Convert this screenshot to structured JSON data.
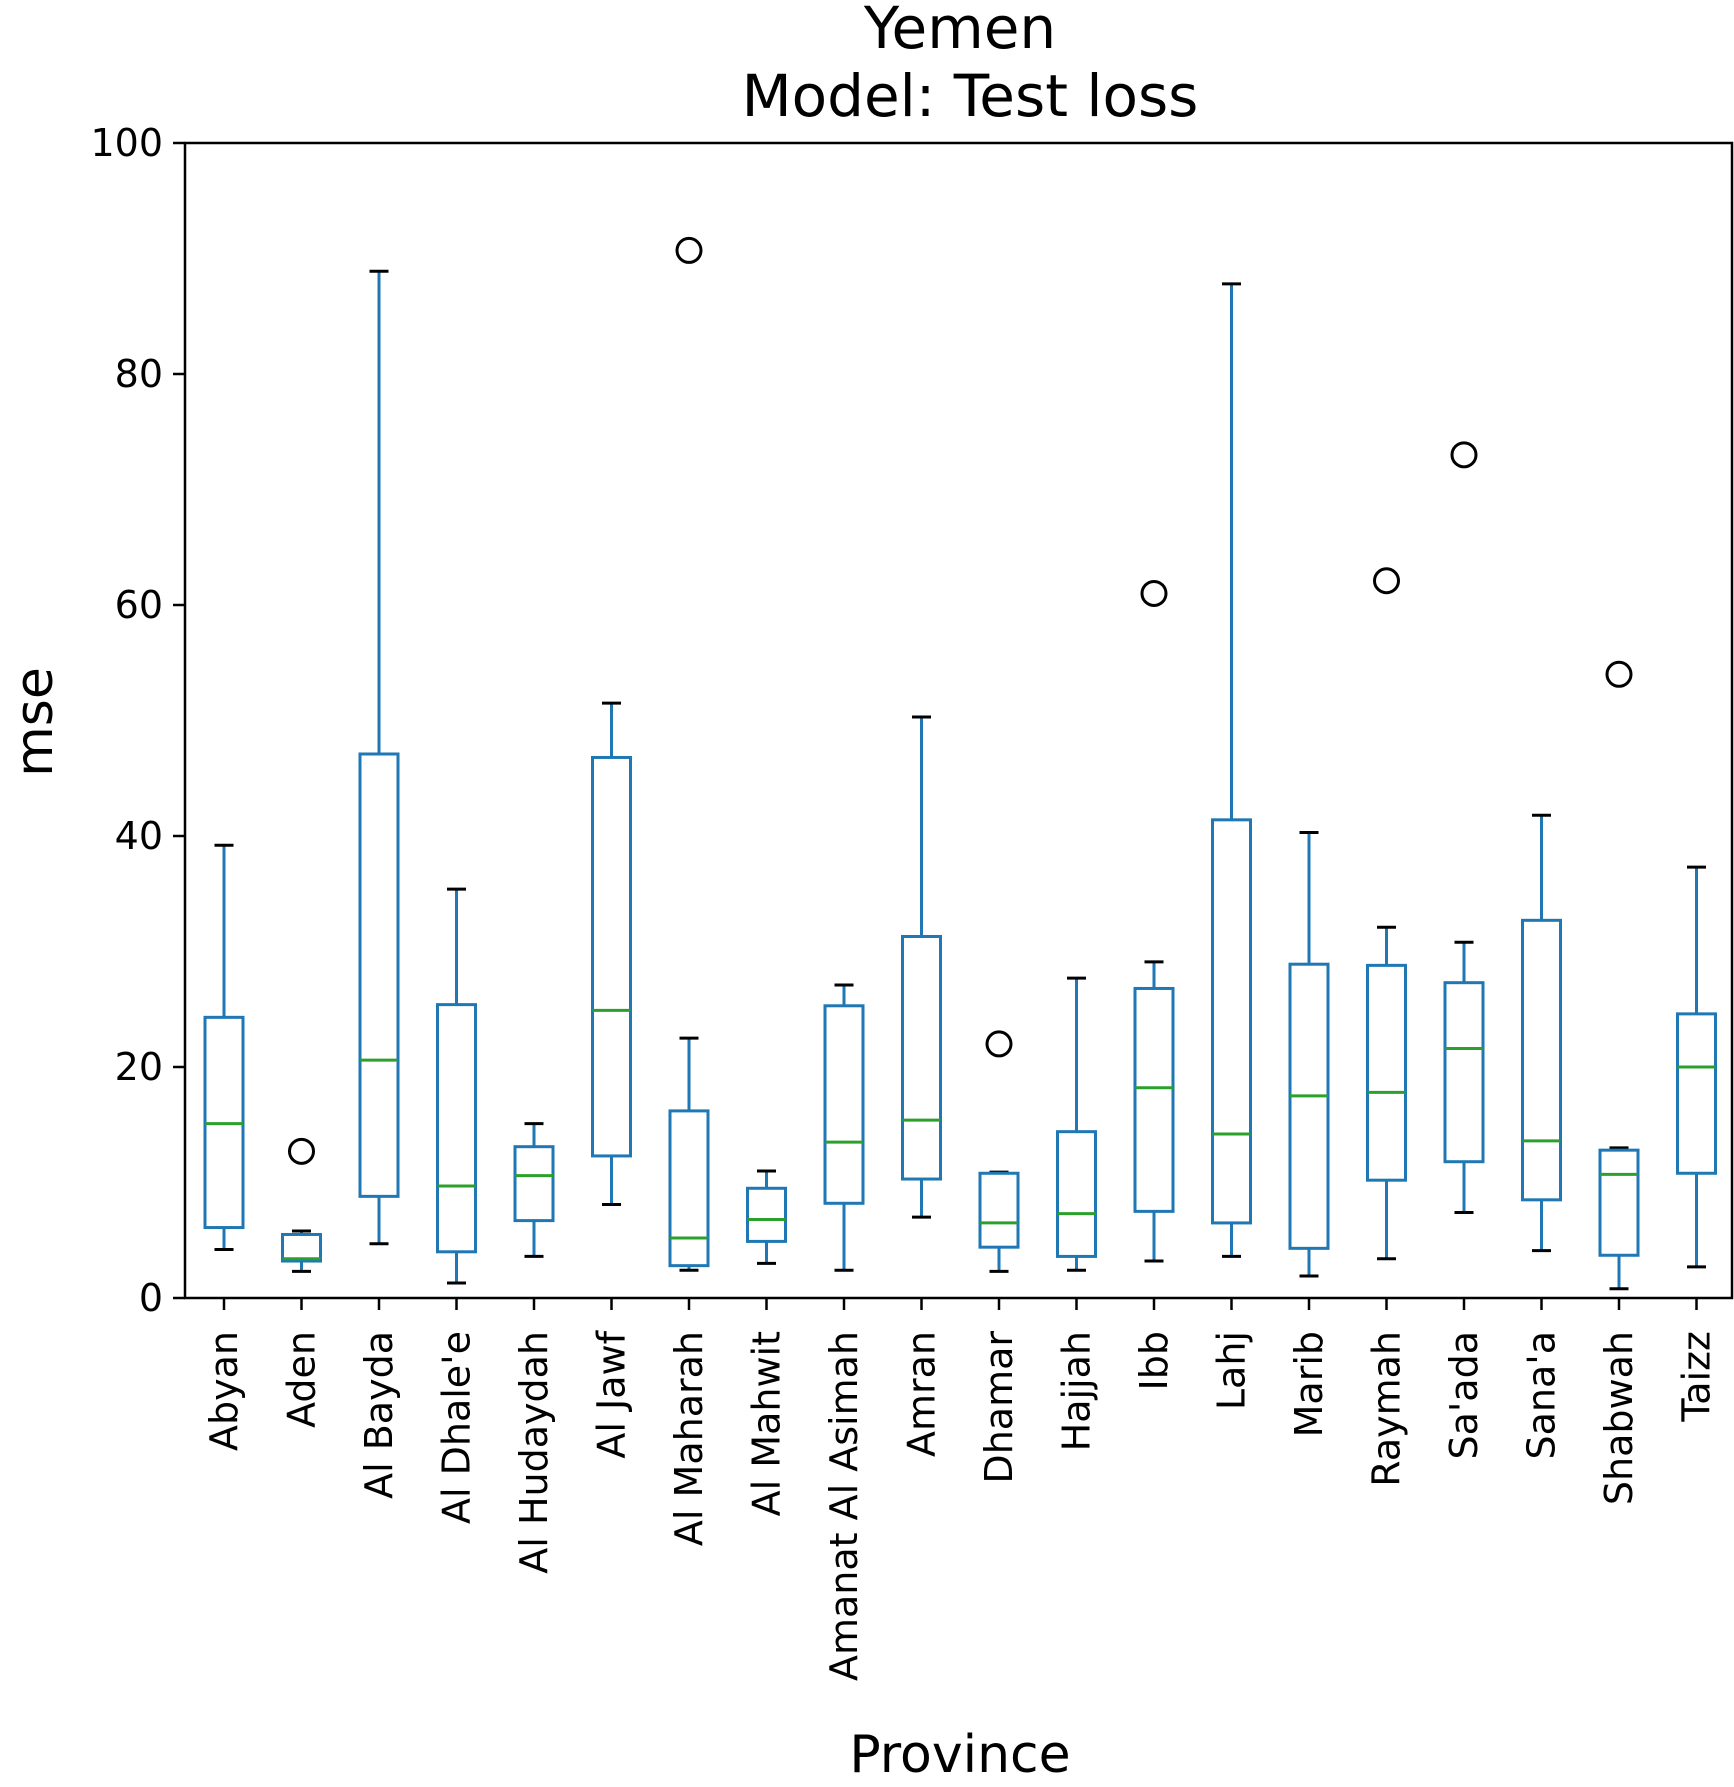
{
  "chart_data": {
    "type": "box",
    "title": "Yemen",
    "subtitle": "Model: Test loss",
    "xlabel": "Province",
    "ylabel": "mse",
    "ylim": [
      0,
      100
    ],
    "yticks": [
      0,
      20,
      40,
      60,
      80,
      100
    ],
    "grid": false,
    "colors": {
      "box": "#1f77b4",
      "median": "#2ca02c",
      "whisker_cap": "#000000",
      "flier": "#000000"
    },
    "categories": [
      "Abyan",
      "Aden",
      "Al Bayda",
      "Al Dhale'e",
      "Al Hudaydah",
      "Al Jawf",
      "Al Maharah",
      "Al Mahwit",
      "Amanat Al Asimah",
      "Amran",
      "Dhamar",
      "Hajjah",
      "Ibb",
      "Lahj",
      "Marib",
      "Raymah",
      "Sa'ada",
      "Sana'a",
      "Shabwah",
      "Taizz"
    ],
    "boxes": [
      {
        "low": 4.2,
        "q1": 6.1,
        "median": 15.1,
        "q3": 24.3,
        "high": 39.2,
        "outliers": []
      },
      {
        "low": 2.3,
        "q1": 3.2,
        "median": 3.4,
        "q3": 5.5,
        "high": 5.8,
        "outliers": [
          12.7
        ]
      },
      {
        "low": 4.7,
        "q1": 8.8,
        "median": 20.6,
        "q3": 47.1,
        "high": 88.9,
        "outliers": []
      },
      {
        "low": 1.3,
        "q1": 4.0,
        "median": 9.7,
        "q3": 25.4,
        "high": 35.4,
        "outliers": []
      },
      {
        "low": 3.6,
        "q1": 6.7,
        "median": 10.6,
        "q3": 13.1,
        "high": 15.1,
        "outliers": []
      },
      {
        "low": 8.1,
        "q1": 12.3,
        "median": 24.9,
        "q3": 46.8,
        "high": 51.5,
        "outliers": []
      },
      {
        "low": 2.4,
        "q1": 2.8,
        "median": 5.2,
        "q3": 16.2,
        "high": 22.5,
        "outliers": [
          90.7
        ]
      },
      {
        "low": 3.0,
        "q1": 4.9,
        "median": 6.8,
        "q3": 9.5,
        "high": 11.0,
        "outliers": []
      },
      {
        "low": 2.4,
        "q1": 8.2,
        "median": 13.5,
        "q3": 25.3,
        "high": 27.1,
        "outliers": []
      },
      {
        "low": 7.0,
        "q1": 10.3,
        "median": 15.4,
        "q3": 31.3,
        "high": 50.3,
        "outliers": []
      },
      {
        "low": 2.3,
        "q1": 4.4,
        "median": 6.5,
        "q3": 10.8,
        "high": 10.9,
        "outliers": [
          22.0
        ]
      },
      {
        "low": 2.4,
        "q1": 3.6,
        "median": 7.3,
        "q3": 14.4,
        "high": 27.7,
        "outliers": []
      },
      {
        "low": 3.2,
        "q1": 7.5,
        "median": 18.2,
        "q3": 26.8,
        "high": 29.1,
        "outliers": [
          61.0
        ]
      },
      {
        "low": 3.6,
        "q1": 6.5,
        "median": 14.2,
        "q3": 41.4,
        "high": 87.8,
        "outliers": []
      },
      {
        "low": 1.9,
        "q1": 4.3,
        "median": 17.5,
        "q3": 28.9,
        "high": 40.3,
        "outliers": []
      },
      {
        "low": 3.4,
        "q1": 10.2,
        "median": 17.8,
        "q3": 28.8,
        "high": 32.1,
        "outliers": [
          62.1
        ]
      },
      {
        "low": 7.4,
        "q1": 11.8,
        "median": 21.6,
        "q3": 27.3,
        "high": 30.8,
        "outliers": [
          73.0
        ]
      },
      {
        "low": 4.1,
        "q1": 8.5,
        "median": 13.6,
        "q3": 32.7,
        "high": 41.8,
        "outliers": []
      },
      {
        "low": 0.8,
        "q1": 3.7,
        "median": 10.7,
        "q3": 12.8,
        "high": 13.0,
        "outliers": [
          54.0
        ]
      },
      {
        "low": 2.7,
        "q1": 10.8,
        "median": 20.0,
        "q3": 24.6,
        "high": 37.3,
        "outliers": []
      }
    ]
  }
}
